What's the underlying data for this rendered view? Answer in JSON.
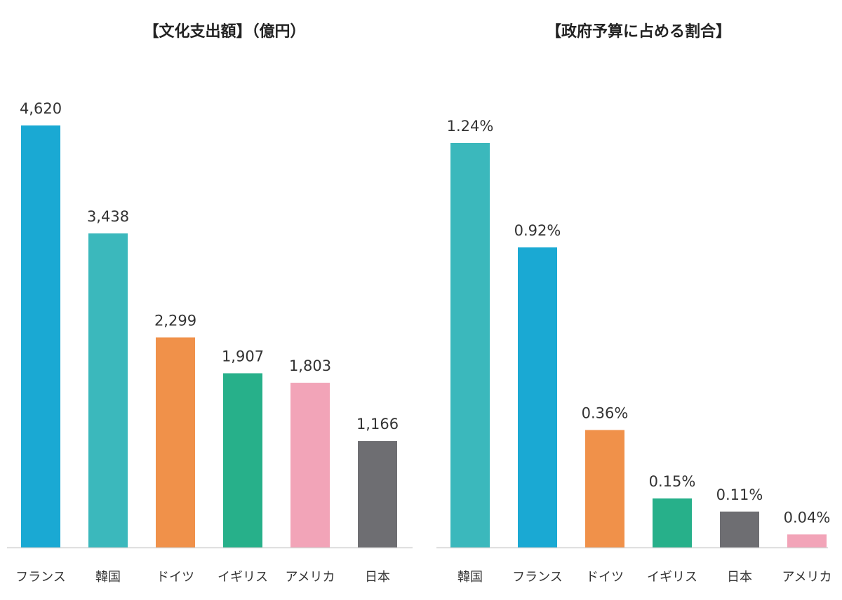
{
  "chart_data": [
    {
      "type": "bar",
      "title": "【文化支出額】（億円）",
      "categories": [
        "フランス",
        "韓国",
        "ドイツ",
        "イギリス",
        "アメリカ",
        "日本"
      ],
      "values": [
        4620,
        3438,
        2299,
        1907,
        1803,
        1166
      ],
      "value_labels": [
        "4,620",
        "3,438",
        "2,299",
        "1,907",
        "1,803",
        "1,166"
      ],
      "colors": [
        "#1aa9d3",
        "#3bb8bc",
        "#f0914a",
        "#27b08a",
        "#f2a4b8",
        "#6e6e72"
      ],
      "ylim": [
        0,
        4620
      ],
      "grid": false,
      "xlabel": "",
      "ylabel": ""
    },
    {
      "type": "bar",
      "title": "【政府予算に占める割合】",
      "categories": [
        "韓国",
        "フランス",
        "ドイツ",
        "イギリス",
        "日本",
        "アメリカ"
      ],
      "values": [
        1.24,
        0.92,
        0.36,
        0.15,
        0.11,
        0.04
      ],
      "value_labels": [
        "1.24%",
        "0.92%",
        "0.36%",
        "0.15%",
        "0.11%",
        "0.04%"
      ],
      "colors": [
        "#3bb8bc",
        "#1aa9d3",
        "#f0914a",
        "#27b08a",
        "#6e6e72",
        "#f2a4b8"
      ],
      "ylim": [
        0,
        1.24
      ],
      "grid": false,
      "xlabel": "",
      "ylabel": ""
    }
  ]
}
